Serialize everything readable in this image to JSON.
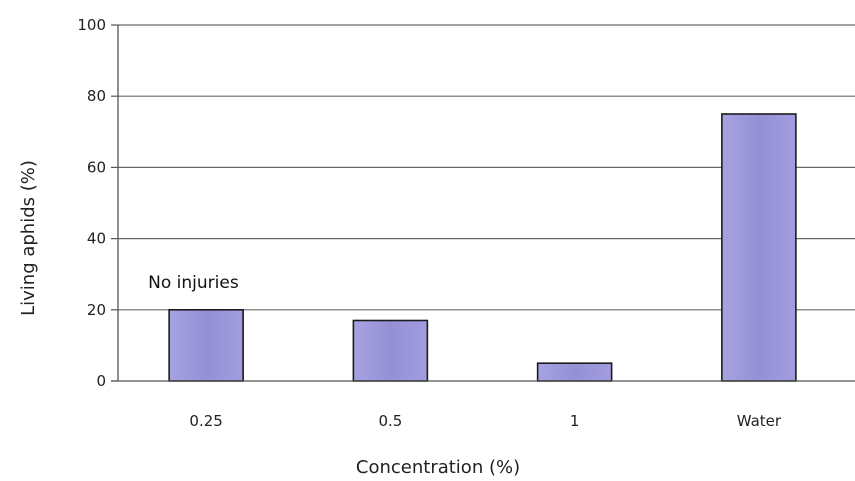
{
  "chart_data": {
    "type": "bar",
    "categories": [
      "0.25",
      "0.5",
      "1",
      "Water"
    ],
    "values": [
      20,
      17,
      5,
      75
    ],
    "xlabel": "Concentration  (%)",
    "ylabel": "Living aphids (%)",
    "ylim": [
      0,
      100
    ],
    "yticks": [
      0,
      20,
      40,
      60,
      80,
      100
    ],
    "grid": true,
    "legend": "none",
    "bar_color": "#9b98d8",
    "bar_edge_color": "#1c1c1c",
    "annotations": [
      {
        "text": "No injuries",
        "category": "0.25"
      }
    ]
  }
}
